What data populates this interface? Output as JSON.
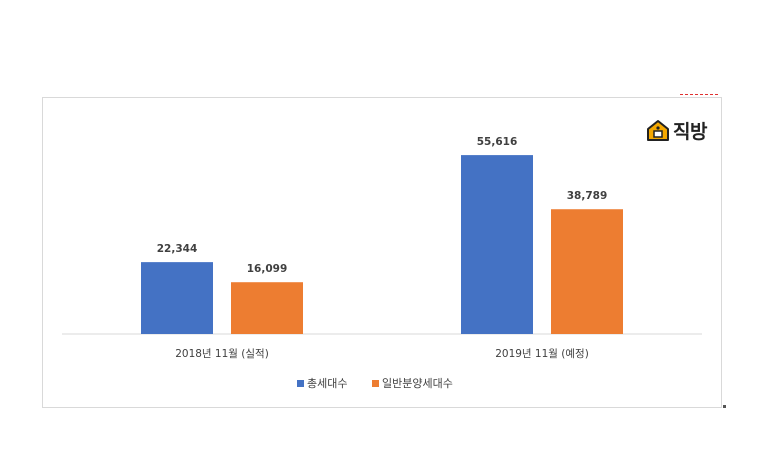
{
  "brand": {
    "name": "직방",
    "icon": "house-icon",
    "icon_color": "#f5a800"
  },
  "chart_data": {
    "type": "bar",
    "categories": [
      "2018년 11월 (실적)",
      "2019년 11월 (예정)"
    ],
    "series": [
      {
        "name": "총세대수",
        "values": [
          22344,
          55616
        ],
        "labels": [
          "22,344",
          "55,616"
        ],
        "color": "#4472c4"
      },
      {
        "name": "일반분양세대수",
        "values": [
          16099,
          38789
        ],
        "labels": [
          "16,099",
          "38,789"
        ],
        "color": "#ed7d31"
      }
    ],
    "ylim": [
      0,
      60000
    ],
    "grid": false,
    "legend_position": "bottom"
  }
}
